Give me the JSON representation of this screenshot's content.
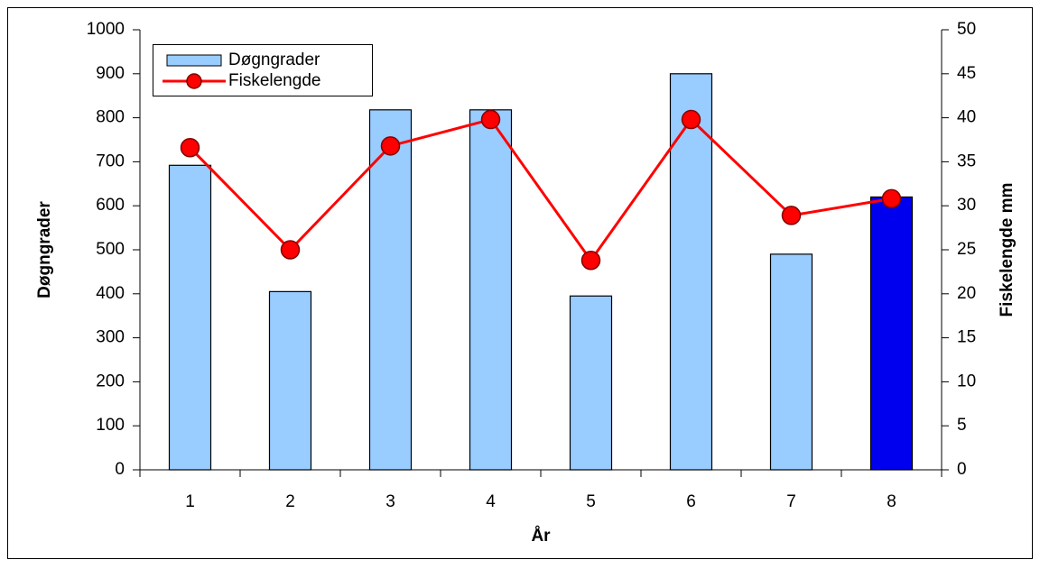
{
  "chart_data": {
    "type": "bar-line",
    "x_label": "År",
    "y_label": "Døgngrader",
    "y2_label": "Fiskelengde mm",
    "categories": [
      "1",
      "2",
      "3",
      "4",
      "5",
      "6",
      "7",
      "8"
    ],
    "series": [
      {
        "name": "Døgngrader",
        "type": "bar",
        "color": "#99ccff",
        "colors": [
          "#99ccff",
          "#99ccff",
          "#99ccff",
          "#99ccff",
          "#99ccff",
          "#99ccff",
          "#99ccff",
          "#0000ee"
        ],
        "values": [
          692,
          405,
          818,
          818,
          395,
          900,
          490,
          620
        ]
      },
      {
        "name": "Fiskelengde",
        "type": "line",
        "axis": "y2",
        "color": "#ff0000",
        "values": [
          36.6,
          25.0,
          36.8,
          39.8,
          23.8,
          39.8,
          28.9,
          30.8
        ]
      }
    ],
    "ylim": [
      0,
      1000
    ],
    "yticks": [
      0,
      100,
      200,
      300,
      400,
      500,
      600,
      700,
      800,
      900,
      1000
    ],
    "y2lim": [
      0,
      50
    ],
    "y2ticks": [
      0,
      5,
      10,
      15,
      20,
      25,
      30,
      35,
      40,
      45,
      50
    ],
    "legend": "top-left"
  }
}
